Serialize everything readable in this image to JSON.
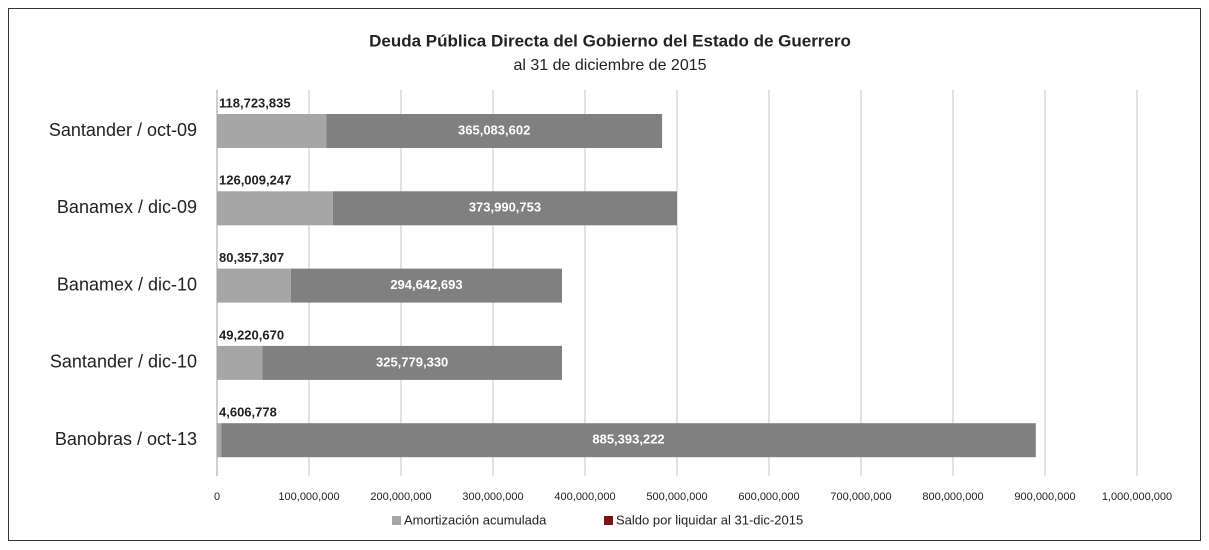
{
  "chart_data": {
    "type": "stacked_barh",
    "title": "Deuda Pública Directa del Gobierno del Estado de Guerrero",
    "subtitle": "al 31 de diciembre de 2015",
    "categories": [
      "Santander / oct-09",
      "Banamex / dic-09",
      "Banamex / dic-10",
      "Santander / dic-10",
      "Banobras / oct-13"
    ],
    "series": [
      {
        "name": "Amortización acumulada",
        "color": "#a6a6a6",
        "values": [
          118723835,
          126009247,
          80357307,
          49220670,
          4606778
        ],
        "value_labels": [
          "118,723,835",
          "126,009,247",
          "80,357,307",
          "49,220,670",
          "4,606,778"
        ]
      },
      {
        "name": "Saldo por liquidar al 31-dic-2015",
        "color": "#808080",
        "legend_color": "#7b1416",
        "values": [
          365083602,
          373990753,
          294642693,
          325779330,
          885393222
        ],
        "value_labels": [
          "365,083,602",
          "373,990,753",
          "294,642,693",
          "325,779,330",
          "885,393,222"
        ]
      }
    ],
    "xlim": [
      0,
      1000000000
    ],
    "xticks": [
      0,
      {
        "value": 100000000,
        "label": "100,000,000"
      },
      {
        "value": 200000000,
        "label": "200,000,000"
      },
      {
        "value": 300000000,
        "label": "300,000,000"
      },
      {
        "value": 400000000,
        "label": "400,000,000"
      },
      {
        "value": 500000000,
        "label": "500,000,000"
      },
      {
        "value": 600000000,
        "label": "600,000,000"
      },
      {
        "value": 700000000,
        "label": "700,000,000"
      },
      {
        "value": 800000000,
        "label": "800,000,000"
      },
      {
        "value": 900000000,
        "label": "900,000,000"
      },
      {
        "value": 1000000000,
        "label": "1,000,000,000"
      }
    ],
    "grid": true,
    "legend": "bottom"
  }
}
